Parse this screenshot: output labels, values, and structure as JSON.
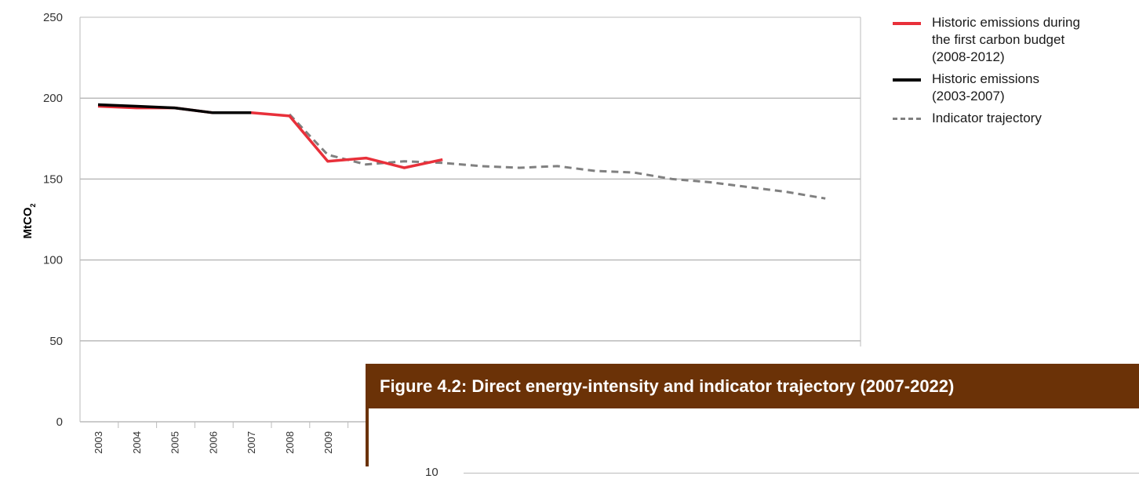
{
  "chart_data": {
    "type": "line",
    "title": "",
    "xlabel": "",
    "ylabel": "MtCO",
    "ylabel_subscript": "2",
    "ylim": [
      0,
      250
    ],
    "yticks": [
      0,
      50,
      100,
      150,
      200,
      250
    ],
    "grid": "horizontal",
    "legend_position": "top-right",
    "x_tick_labels": [
      "2003",
      "2004",
      "2005",
      "2006",
      "2007",
      "2008",
      "2009"
    ],
    "x_range": [
      2003,
      2022
    ],
    "series": [
      {
        "name": "Historic emissions during\nthe first carbon budget\n(2008-2012)",
        "color": "#e8303a",
        "style": "solid",
        "x": [
          2003,
          2004,
          2005,
          2006,
          2007,
          2008,
          2009,
          2010,
          2011,
          2012
        ],
        "y": [
          195,
          194,
          194,
          191,
          191,
          189,
          161,
          163,
          157,
          162
        ]
      },
      {
        "name": "Historic emissions\n(2003-2007)",
        "color": "#000000",
        "style": "solid",
        "x": [
          2003,
          2004,
          2005,
          2006,
          2007
        ],
        "y": [
          196,
          195,
          194,
          191,
          191
        ]
      },
      {
        "name": "Indicator trajectory",
        "color": "#808080",
        "style": "dashed",
        "x": [
          2008,
          2009,
          2010,
          2011,
          2012,
          2013,
          2014,
          2015,
          2016,
          2017,
          2018,
          2019,
          2020,
          2021,
          2022
        ],
        "y": [
          190,
          165,
          159,
          161,
          160,
          158,
          157,
          158,
          155,
          154,
          150,
          148,
          145,
          142,
          138
        ]
      }
    ]
  },
  "figure2": {
    "title": "Figure 4.2: Direct energy-intensity and indicator trajectory (2007-2022)",
    "first_tick": "10"
  }
}
